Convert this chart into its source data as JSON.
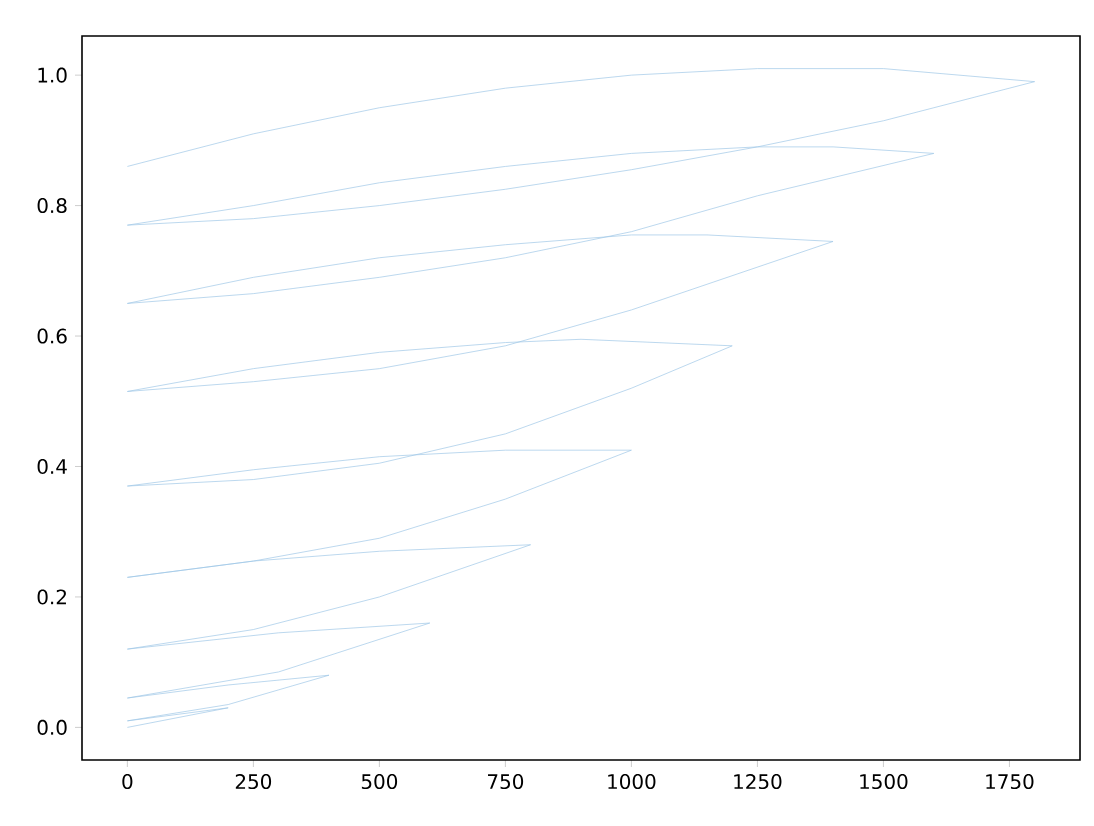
{
  "chart_data": {
    "type": "line",
    "xlim": [
      -90,
      1890
    ],
    "ylim": [
      -0.05,
      1.06
    ],
    "xticks": [
      0,
      250,
      500,
      750,
      1000,
      1250,
      1500,
      1750
    ],
    "yticks": [
      {
        "value": 0,
        "label": "0.0"
      },
      {
        "value": 0.2,
        "label": "0.2"
      },
      {
        "value": 0.4,
        "label": "0.4"
      },
      {
        "value": 0.6,
        "label": "0.6"
      },
      {
        "value": 0.8,
        "label": "0.8"
      },
      {
        "value": 1.0,
        "label": "1.0"
      }
    ],
    "marker": "none",
    "line_style": "solid",
    "series": [
      {
        "color": "#9ec7e6",
        "x": [
          0,
          250,
          500,
          750,
          1000,
          1250,
          1500,
          1800,
          1500,
          1250,
          1000,
          750,
          500,
          250,
          0,
          250,
          500,
          750,
          1000,
          1250,
          1400,
          1600,
          1250,
          1000,
          750,
          500,
          250,
          0,
          250,
          500,
          750,
          1000,
          1150,
          1400,
          1000,
          750,
          500,
          250,
          0,
          250,
          500,
          750,
          900,
          1200,
          1000,
          750,
          500,
          250,
          0,
          250,
          500,
          750,
          1000,
          750,
          500,
          250,
          0,
          250,
          500,
          800,
          500,
          250,
          0,
          300,
          600,
          300,
          0,
          200,
          400,
          200,
          0,
          200,
          0
        ],
        "values": [
          0.86,
          0.91,
          0.95,
          0.98,
          1.0,
          1.01,
          1.01,
          0.99,
          0.93,
          0.89,
          0.855,
          0.825,
          0.8,
          0.78,
          0.77,
          0.8,
          0.835,
          0.86,
          0.88,
          0.89,
          0.89,
          0.88,
          0.815,
          0.76,
          0.72,
          0.69,
          0.665,
          0.65,
          0.69,
          0.72,
          0.74,
          0.755,
          0.755,
          0.745,
          0.64,
          0.585,
          0.55,
          0.53,
          0.515,
          0.55,
          0.575,
          0.59,
          0.595,
          0.585,
          0.52,
          0.45,
          0.405,
          0.38,
          0.37,
          0.395,
          0.415,
          0.425,
          0.425,
          0.35,
          0.29,
          0.255,
          0.23,
          0.255,
          0.27,
          0.28,
          0.2,
          0.15,
          0.12,
          0.145,
          0.16,
          0.085,
          0.045,
          0.065,
          0.08,
          0.035,
          0.01,
          0.03,
          0.0
        ]
      }
    ]
  }
}
